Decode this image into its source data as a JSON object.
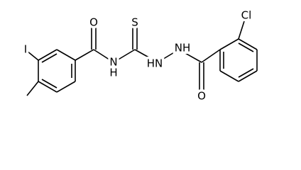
{
  "atoms": [
    {
      "label": "I"
    },
    {
      "label": "O"
    },
    {
      "label": "N"
    },
    {
      "label": "H"
    },
    {
      "label": "S"
    },
    {
      "label": "HN"
    },
    {
      "label": "NH"
    },
    {
      "label": "O"
    },
    {
      "label": "Cl"
    }
  ]
}
